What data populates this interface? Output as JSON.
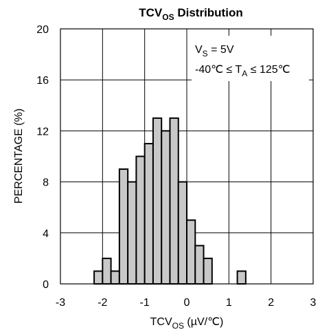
{
  "chart_data": {
    "type": "bar",
    "title": {
      "main": "TCV",
      "sub": "OS",
      "rest": " Distribution"
    },
    "xlabel": {
      "main": "TCV",
      "sub": "OS",
      "rest": " (µV/℃)"
    },
    "ylabel": "PERCENTAGE (%)",
    "xlim": [
      -3,
      3
    ],
    "ylim": [
      0,
      20
    ],
    "x_ticks": [
      "-3",
      "-2",
      "-1",
      "0",
      "1",
      "2",
      "3"
    ],
    "y_ticks": [
      "0",
      "4",
      "8",
      "12",
      "16",
      "20"
    ],
    "grid": true,
    "bin_width": 0.2,
    "bin_starts": [
      -2.2,
      -2.0,
      -1.8,
      -1.6,
      -1.4,
      -1.2,
      -1.0,
      -0.8,
      -0.6,
      -0.4,
      -0.2,
      0.0,
      0.2,
      0.4,
      1.2
    ],
    "values": [
      1,
      2,
      1,
      9,
      8,
      10,
      11,
      13,
      12,
      13,
      8,
      5,
      3,
      2,
      1
    ],
    "bar_color": "#c8c8c8",
    "annotations": {
      "line1": {
        "pre": "V",
        "sub": "S",
        "post": " = 5V"
      },
      "line2": {
        "pre": "-40℃  ≤ T",
        "sub": "A",
        "post": " ≤ 125℃"
      }
    }
  }
}
